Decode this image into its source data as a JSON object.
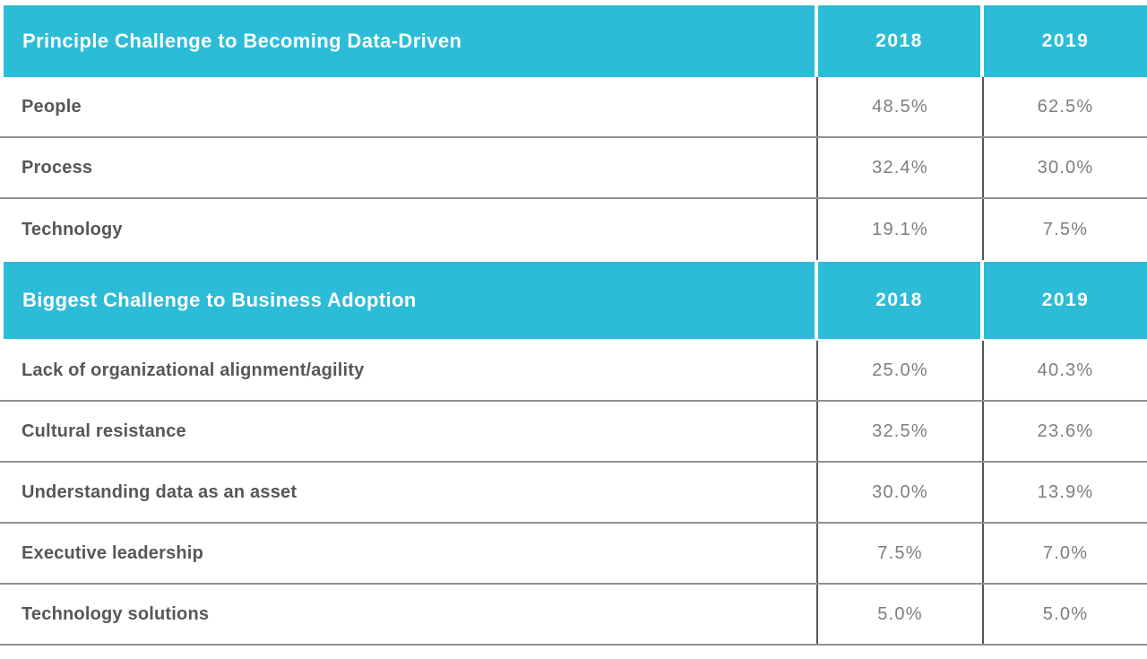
{
  "colors": {
    "accent": "#2cbcd8",
    "header_text": "#ffffff",
    "label_text": "#565759",
    "value_text": "#7c7e81",
    "vertical_line": "#55565a",
    "horizontal_line": "#8f9193"
  },
  "chart_data": [
    {
      "type": "table",
      "title": "Principle Challenge to Becoming Data-Driven",
      "columns": [
        "Principle Challenge to Becoming Data-Driven",
        "2018",
        "2019"
      ],
      "rows": [
        [
          "People",
          "48.5%",
          "62.5%"
        ],
        [
          "Process",
          "32.4%",
          "30.0%"
        ],
        [
          "Technology",
          "19.1%",
          "7.5%"
        ]
      ],
      "layout": {
        "header_background": "#2cbcd8",
        "values_are_percent": true,
        "grid": "horizontal and vertical dividers, no outer left/right border"
      }
    },
    {
      "type": "table",
      "title": "Biggest Challenge to Business Adoption",
      "columns": [
        "Biggest Challenge to Business Adoption",
        "2018",
        "2019"
      ],
      "rows": [
        [
          "Lack of organizational alignment/agility",
          "25.0%",
          "40.3%"
        ],
        [
          "Cultural resistance",
          "32.5%",
          "23.6%"
        ],
        [
          "Understanding data as an asset",
          "30.0%",
          "13.9%"
        ],
        [
          "Executive leadership",
          "7.5%",
          "7.0%"
        ],
        [
          "Technology solutions",
          "5.0%",
          "5.0%"
        ]
      ],
      "layout": {
        "header_background": "#2cbcd8",
        "values_are_percent": true,
        "grid": "horizontal and vertical dividers, no outer left/right border"
      }
    }
  ]
}
